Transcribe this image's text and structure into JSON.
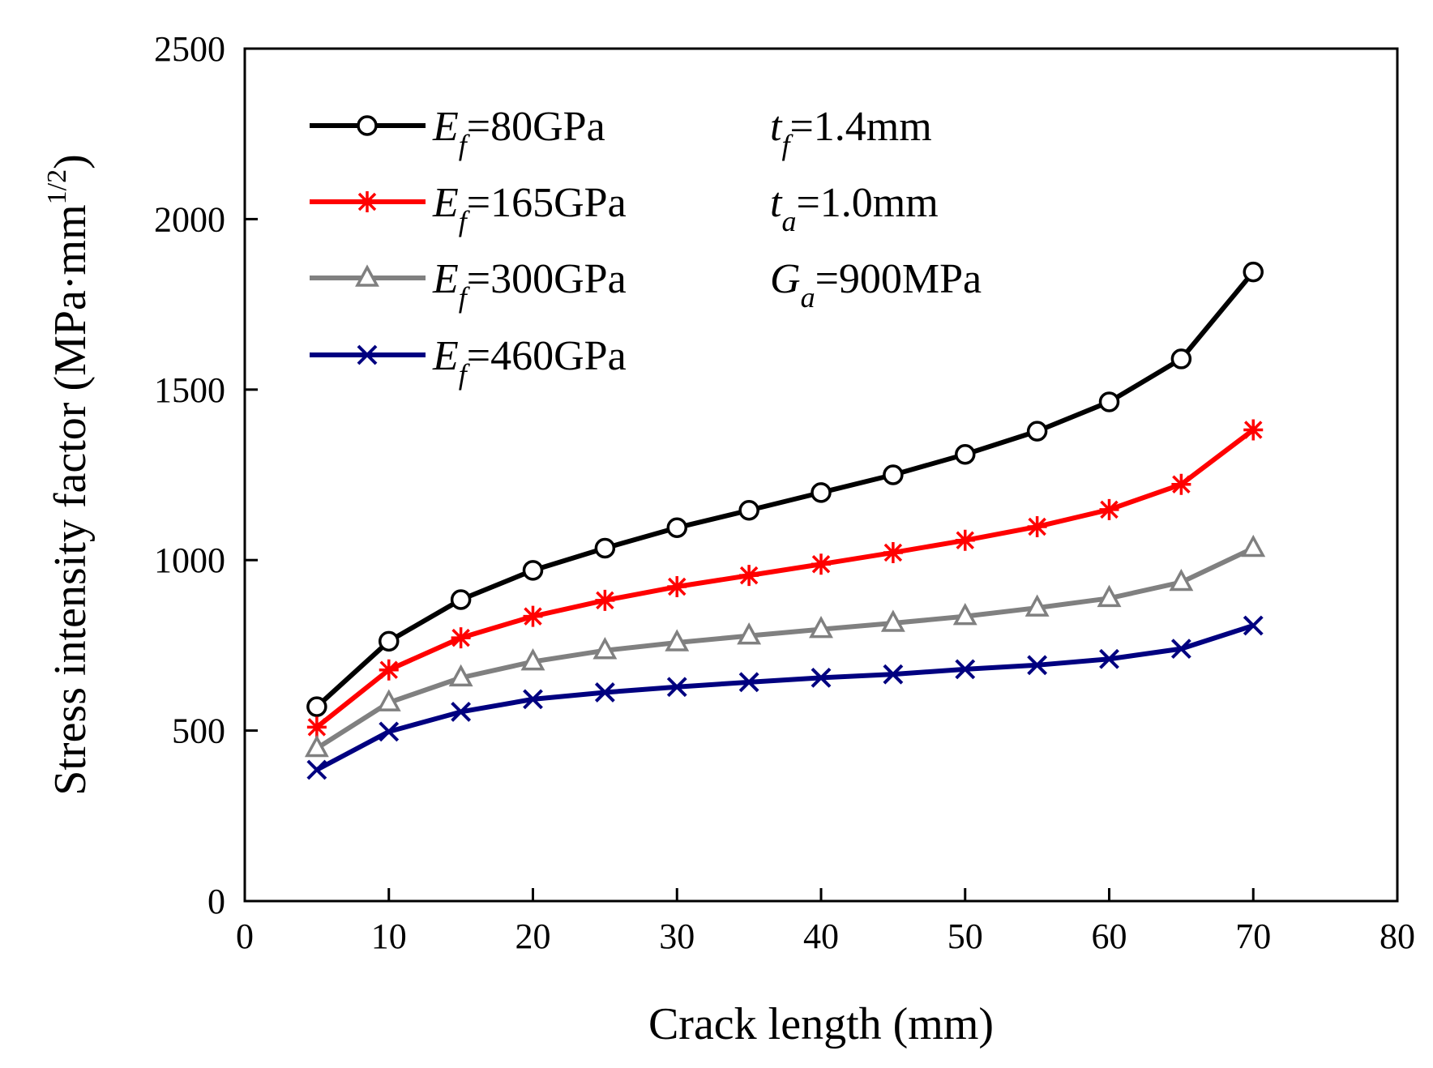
{
  "chart_data": {
    "type": "line",
    "title": "",
    "xlabel": "Crack length (mm)",
    "ylabel": {
      "main": "Stress intensity factor (MPa·mm",
      "sup": "1/2",
      "close": ")"
    },
    "xlim": [
      0,
      80
    ],
    "ylim": [
      0,
      2500
    ],
    "xticks": [
      0,
      10,
      20,
      30,
      40,
      50,
      60,
      70,
      80
    ],
    "yticks": [
      0,
      500,
      1000,
      1500,
      2000,
      2500
    ],
    "grid": false,
    "legend_position": "top-left",
    "x": [
      5,
      10,
      15,
      20,
      25,
      30,
      35,
      40,
      45,
      50,
      55,
      60,
      65,
      70
    ],
    "series": [
      {
        "symbol": "E",
        "sub": "f",
        "rest": "=80GPa",
        "color": "#000000",
        "marker": "circle",
        "values": [
          570,
          762,
          884,
          970,
          1035,
          1095,
          1146,
          1198,
          1250,
          1310,
          1378,
          1464,
          1590,
          1845
        ]
      },
      {
        "symbol": "E",
        "sub": "f",
        "rest": "=165GPa",
        "color": "#ff0000",
        "marker": "asterisk",
        "values": [
          510,
          678,
          772,
          835,
          882,
          922,
          955,
          988,
          1022,
          1058,
          1098,
          1148,
          1222,
          1382
        ]
      },
      {
        "symbol": "E",
        "sub": "f",
        "rest": "=300GPa",
        "color": "#808080",
        "marker": "triangle",
        "values": [
          448,
          582,
          655,
          702,
          735,
          758,
          778,
          797,
          815,
          835,
          860,
          888,
          935,
          1035
        ]
      },
      {
        "symbol": "E",
        "sub": "f",
        "rest": "=460GPa",
        "color": "#000080",
        "marker": "x",
        "values": [
          385,
          497,
          555,
          592,
          612,
          628,
          642,
          655,
          665,
          680,
          692,
          710,
          740,
          808
        ]
      }
    ],
    "annotations": [
      {
        "symbol": "t",
        "sub": "f",
        "rest": "=1.4mm"
      },
      {
        "symbol": "t",
        "sub": "a",
        "rest": "=1.0mm"
      },
      {
        "symbol": "G",
        "sub": "a",
        "rest": "=900MPa"
      }
    ]
  }
}
